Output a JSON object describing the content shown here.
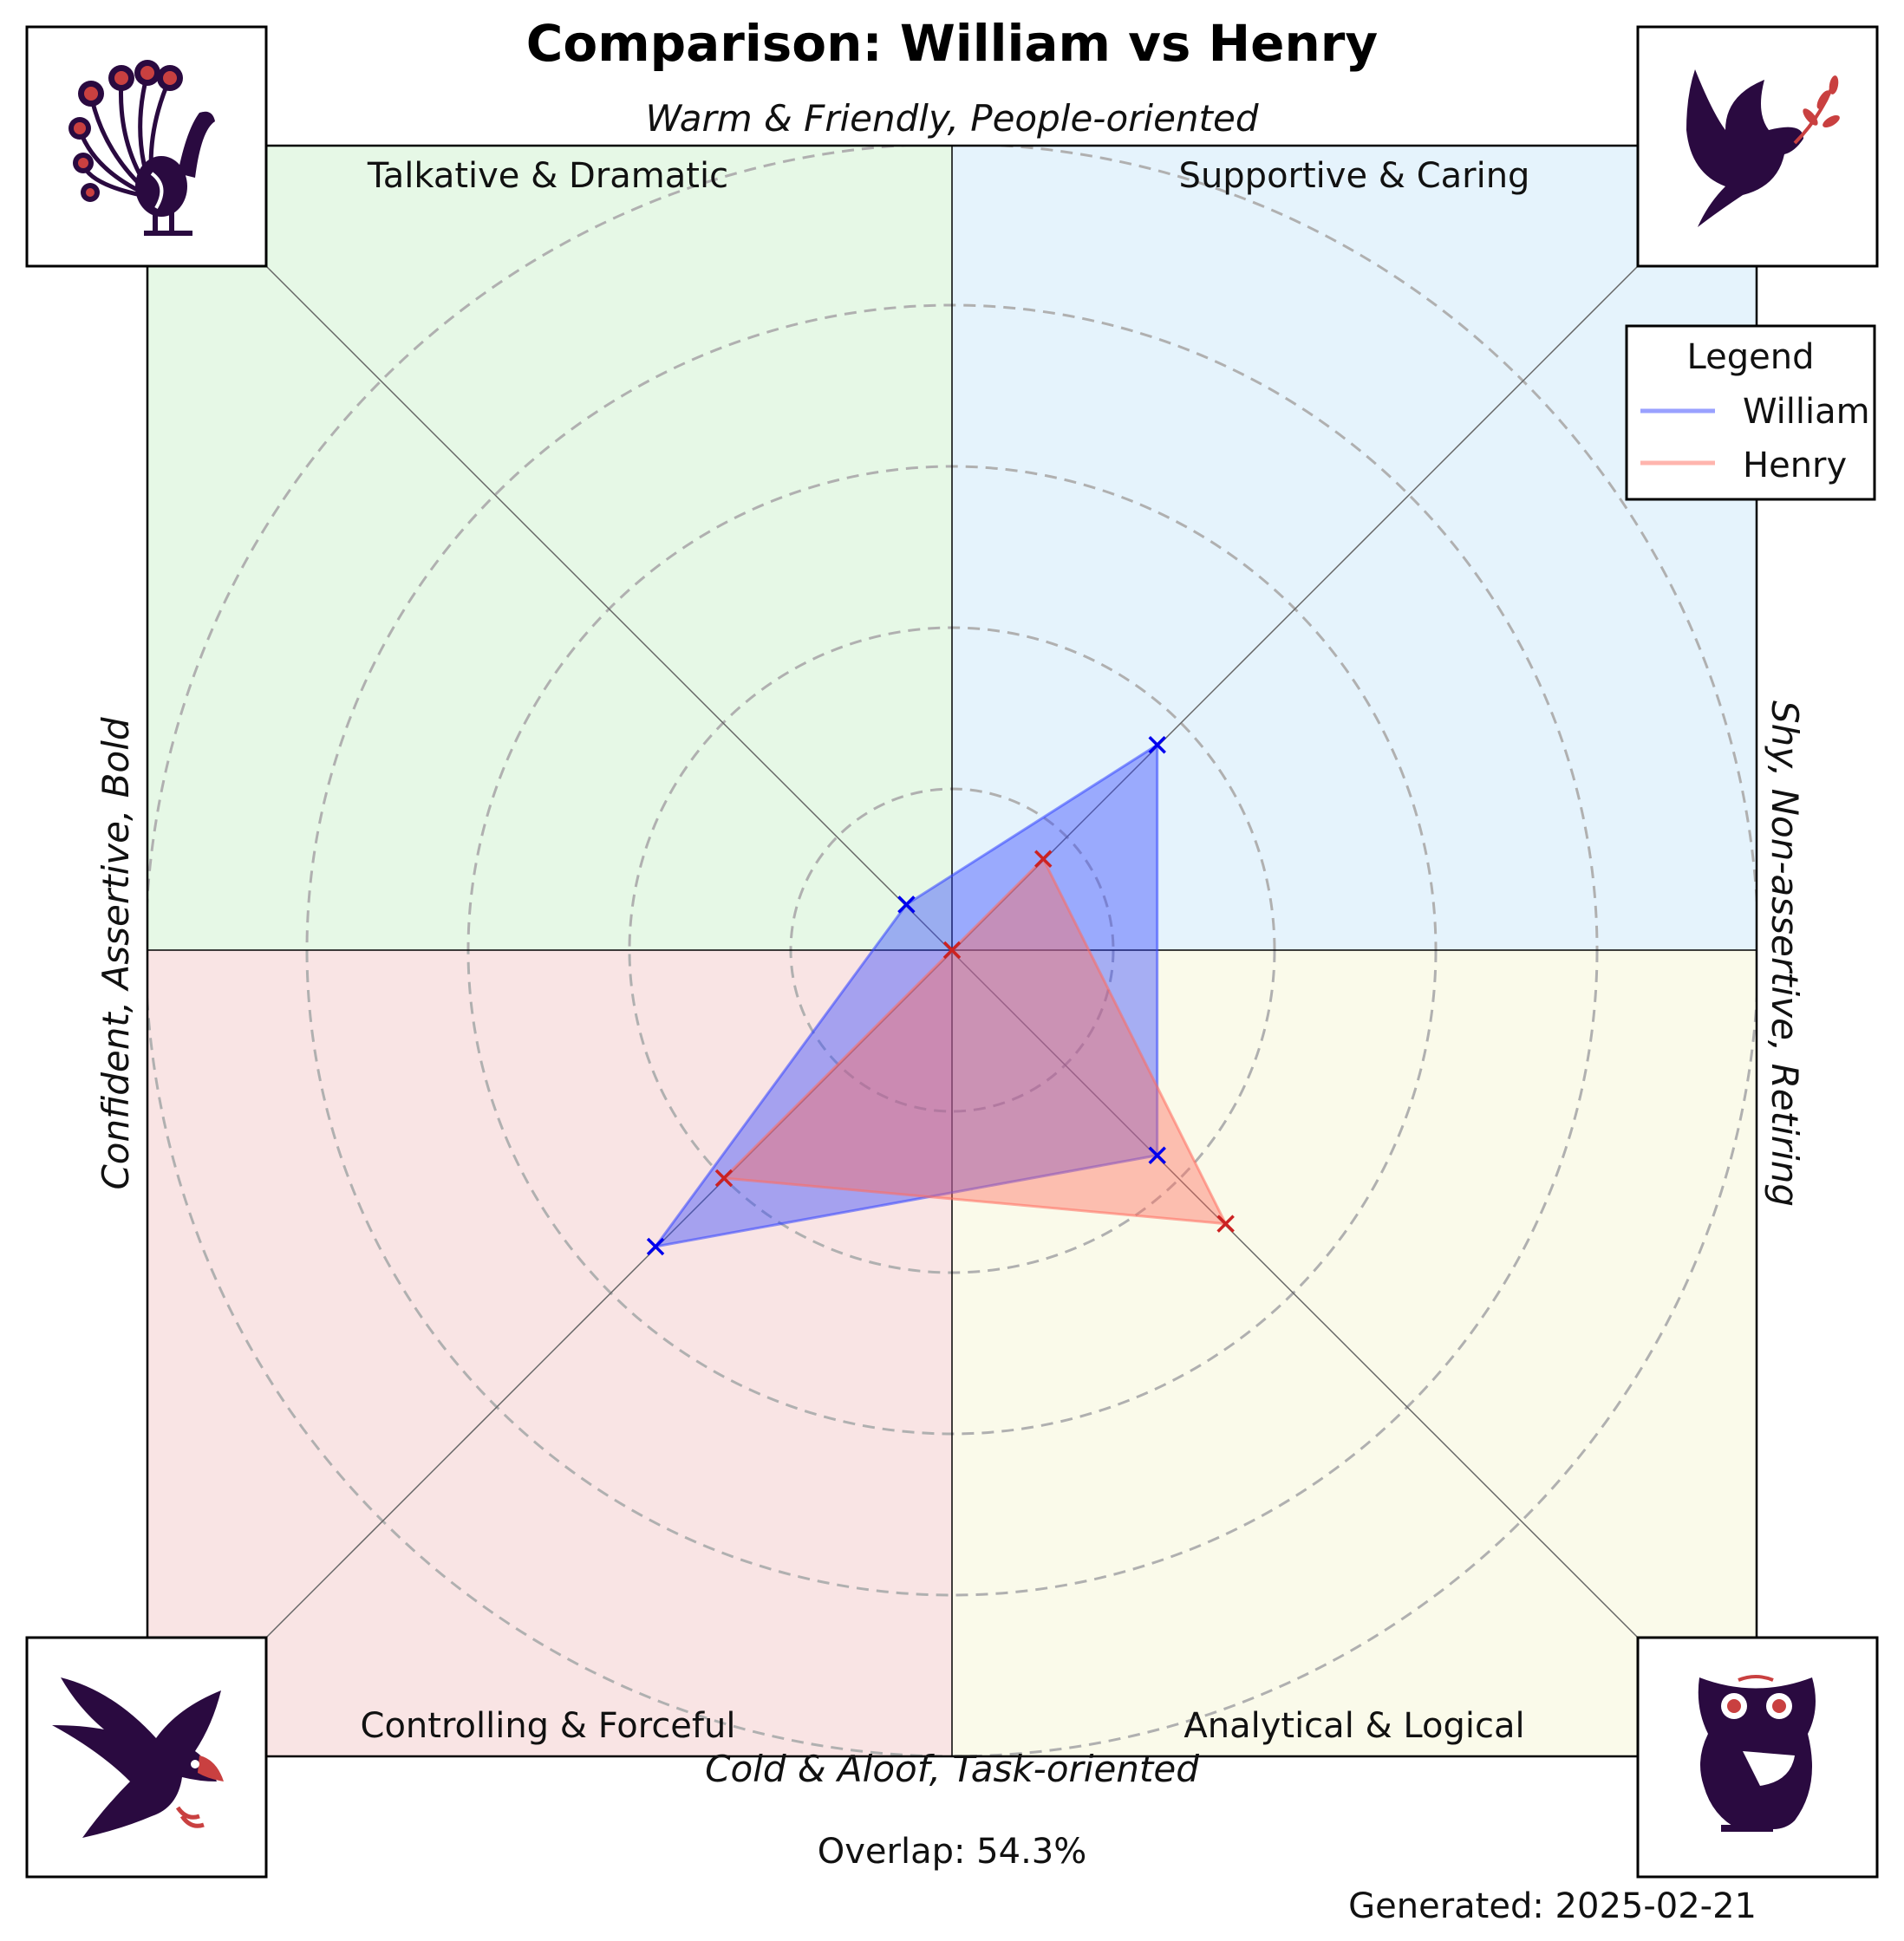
{
  "chart_data": {
    "type": "radar",
    "title": "Comparison: William vs Henry",
    "axis_labels": {
      "top": "Warm & Friendly, People-oriented",
      "bottom": "Cold & Aloof, Task-oriented",
      "left": "Confident, Assertive, Bold",
      "right": "Shy, Non-assertive, Retiring"
    },
    "quadrants": [
      {
        "label": "Talkative & Dramatic",
        "position": "top-left",
        "color": "#e6f8e6",
        "icon": "peacock-icon"
      },
      {
        "label": "Supportive & Caring",
        "position": "top-right",
        "color": "#e5f3fc",
        "icon": "dove-icon"
      },
      {
        "label": "Controlling & Forceful",
        "position": "bottom-left",
        "color": "#f9e4e4",
        "icon": "eagle-icon"
      },
      {
        "label": "Analytical & Logical",
        "position": "bottom-right",
        "color": "#fafaea",
        "icon": "owl-icon"
      }
    ],
    "axes": [
      "Supportive & Caring",
      "Talkative & Dramatic",
      "Controlling & Forceful",
      "Analytical & Logical"
    ],
    "axis_angles_deg": [
      45,
      135,
      225,
      315
    ],
    "rlim": [
      0,
      5
    ],
    "rings": [
      1,
      2,
      3,
      4,
      5
    ],
    "series": [
      {
        "name": "William",
        "color": "#3344ff",
        "marker_color": "#0000ee",
        "values": [
          1.8,
          0.4,
          2.6,
          1.8
        ]
      },
      {
        "name": "Henry",
        "color": "#ff6b5e",
        "marker_color": "#cc2222",
        "values": [
          0.8,
          0.0,
          2.0,
          2.4
        ]
      }
    ],
    "legend": {
      "title": "Legend",
      "placement": "right"
    },
    "overlap_label": "Overlap: 54.3%",
    "generated_label": "Generated: 2025-02-21"
  }
}
